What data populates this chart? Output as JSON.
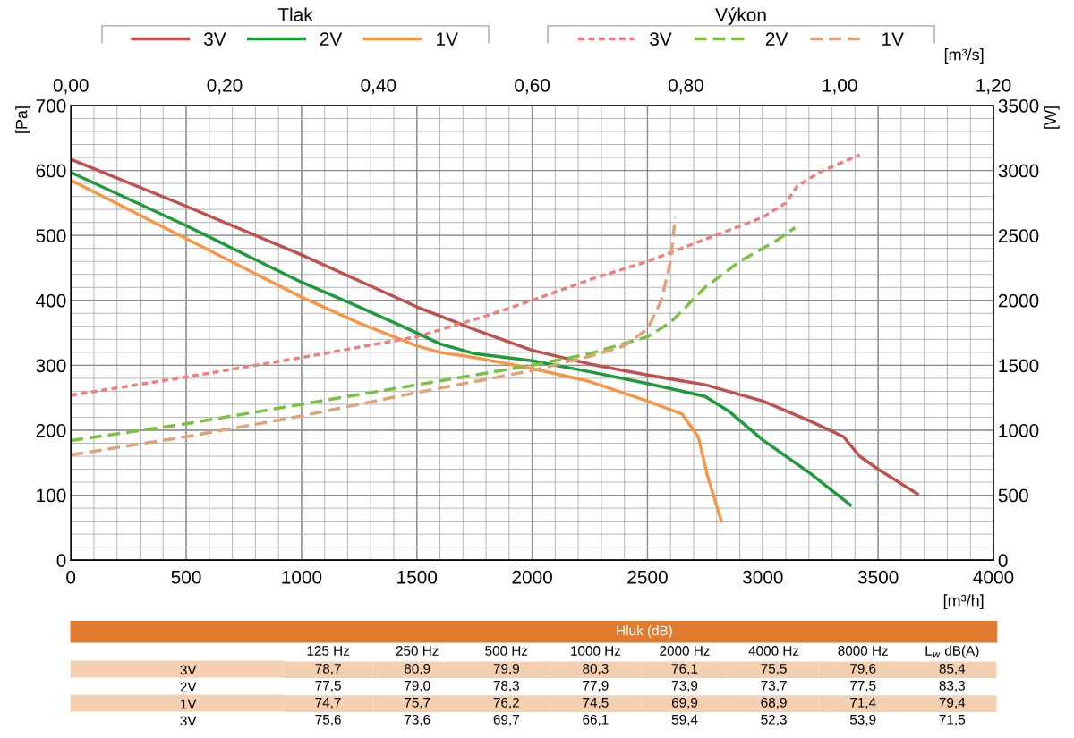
{
  "chart_data": [
    {
      "type": "line",
      "annotations": [
        "Tlak",
        "Výkon"
      ],
      "xlabel": "[m³/h]",
      "ylabel": "[Pa]",
      "y2label": "[W]",
      "x2label": "[m³/s]",
      "xlim": [
        0,
        4000
      ],
      "xticks": [
        0,
        500,
        1000,
        1500,
        2000,
        2500,
        3000,
        3500,
        4000
      ],
      "ylim": [
        0,
        700
      ],
      "yticks": [
        0,
        100,
        200,
        300,
        400,
        500,
        600,
        700
      ],
      "y2lim": [
        0,
        3500
      ],
      "y2ticks": [
        0,
        500,
        1000,
        1500,
        2000,
        2500,
        3000,
        3500
      ],
      "x2lim": [
        0,
        1.2
      ],
      "x2ticks": [
        {
          "value": 0,
          "label": "0,00"
        },
        {
          "value": 0.2,
          "label": "0,20"
        },
        {
          "value": 0.4,
          "label": "0,40"
        },
        {
          "value": 0.6,
          "label": "0,60"
        },
        {
          "value": 0.8,
          "label": "0,80"
        },
        {
          "value": 1.0,
          "label": "1,00"
        },
        {
          "value": 1.2,
          "label": "1,20"
        }
      ],
      "grid": true,
      "legend": "top",
      "marker": "none",
      "series": [
        {
          "name": "3V",
          "color": "#c0504d",
          "line_style": "solid",
          "x": [
            0,
            500,
            1000,
            1500,
            1750,
            2000,
            2250,
            2500,
            2750,
            3000,
            3200,
            3350,
            3420,
            3500,
            3670
          ],
          "values": [
            617,
            545,
            470,
            390,
            355,
            323,
            302,
            285,
            270,
            245,
            215,
            190,
            160,
            140,
            102
          ]
        },
        {
          "name": "2V",
          "color": "#1e9a3c",
          "line_style": "solid",
          "x": [
            0,
            500,
            1000,
            1250,
            1500,
            1600,
            1750,
            2000,
            2250,
            2500,
            2750,
            2850,
            3000,
            3200,
            3380
          ],
          "values": [
            597,
            515,
            428,
            390,
            350,
            333,
            318,
            307,
            290,
            272,
            252,
            230,
            185,
            135,
            85
          ]
        },
        {
          "name": "1V",
          "color": "#f79646",
          "line_style": "solid",
          "x": [
            0,
            500,
            1000,
            1250,
            1500,
            1600,
            1750,
            2000,
            2250,
            2500,
            2650,
            2720,
            2760,
            2820
          ],
          "values": [
            585,
            495,
            405,
            365,
            330,
            320,
            312,
            295,
            275,
            245,
            225,
            190,
            130,
            60
          ]
        },
        {
          "name": "3V",
          "color": "#f08080",
          "line_style": "dotted",
          "axis": "y2",
          "x": [
            0,
            500,
            1000,
            1500,
            1800,
            2000,
            2250,
            2500,
            2750,
            3000,
            3100,
            3150,
            3250,
            3420
          ],
          "values": [
            1270,
            1410,
            1560,
            1720,
            1880,
            2000,
            2160,
            2300,
            2470,
            2640,
            2750,
            2880,
            2990,
            3120
          ]
        },
        {
          "name": "2V",
          "color": "#7ac143",
          "line_style": "dashed",
          "axis": "y2",
          "x": [
            0,
            500,
            1000,
            1500,
            2000,
            2250,
            2500,
            2600,
            2750,
            2900,
            3050,
            3140
          ],
          "values": [
            920,
            1050,
            1200,
            1350,
            1500,
            1590,
            1720,
            1830,
            2100,
            2300,
            2450,
            2560
          ]
        },
        {
          "name": "1V",
          "color": "#dfa37b",
          "line_style": "dashed",
          "axis": "y2",
          "x": [
            0,
            500,
            1000,
            1500,
            2000,
            2250,
            2400,
            2500,
            2560,
            2600,
            2620
          ],
          "values": [
            810,
            950,
            1110,
            1290,
            1460,
            1570,
            1650,
            1780,
            2000,
            2300,
            2640
          ]
        }
      ]
    },
    {
      "type": "heatmap",
      "title": "Hluk (dB)",
      "color": "#e07b30",
      "categories": [
        "125 Hz",
        "250 Hz",
        "500 Hz",
        "1000 Hz",
        "2000 Hz",
        "4000 Hz",
        "8000 Hz",
        "L$_{w}$ dB(A)"
      ],
      "y_categories": [
        "3V",
        "2V",
        "1V",
        "3V"
      ],
      "colors": [
        "#f5d0b0",
        "#ffffff",
        "#f5d0b0",
        "#ffffff"
      ],
      "cells": [
        [
          78.7,
          80.9,
          79.9,
          80.3,
          76.1,
          75.5,
          79.6,
          85.4
        ],
        [
          77.5,
          79.0,
          78.3,
          77.9,
          73.9,
          73.7,
          77.5,
          83.3
        ],
        [
          74.7,
          75.7,
          76.2,
          74.5,
          69.9,
          68.9,
          71.4,
          79.4
        ],
        [
          75.6,
          73.6,
          69.7,
          66.1,
          59.4,
          52.3,
          53.9,
          71.5
        ]
      ],
      "cell_labels": [
        [
          "78,7",
          "80,9",
          "79,9",
          "80,3",
          "76,1",
          "75,5",
          "79,6",
          "85,4"
        ],
        [
          "77,5",
          "79,0",
          "78,3",
          "77,9",
          "73,9",
          "73,7",
          "77,5",
          "83,3"
        ],
        [
          "74,7",
          "75,7",
          "76,2",
          "74,5",
          "69,9",
          "68,9",
          "71,4",
          "79,4"
        ],
        [
          "75,6",
          "73,6",
          "69,7",
          "66,1",
          "59,4",
          "52,3",
          "53,9",
          "71,5"
        ]
      ]
    }
  ]
}
